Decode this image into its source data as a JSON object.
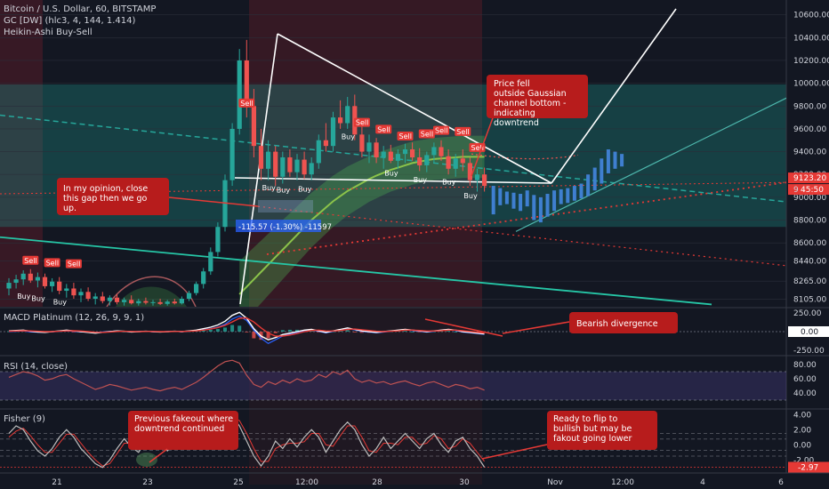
{
  "header": {
    "symbol_line": "Bitcoin / U.S. Dollar, 60, BITSTAMP",
    "indicator_1": "GC [DW] (hlc3, 4, 144, 1.414)",
    "indicator_2": "Heikin-Ashi Buy-Sell"
  },
  "price_axis": {
    "ticks": [
      "10600.00",
      "10400.00",
      "10200.00",
      "10000.00",
      "9800.00",
      "9600.00",
      "9400.00",
      "9200.00",
      "9000.00",
      "8800.00",
      "8600.00",
      "8440.00",
      "8265.00",
      "8105.00"
    ],
    "last_price_label": "9123.20",
    "countdown_label": "45:50",
    "gap_label": "9"
  },
  "macd_panel": {
    "title": "MACD Platinum (12, 26, 9, 9, 1)",
    "ticks": [
      "250.00",
      "0.00",
      "-250.00"
    ],
    "value_label": "0.00"
  },
  "rsi_panel": {
    "title": "RSI (14, close)",
    "ticks": [
      "80.00",
      "60.00",
      "40.00"
    ]
  },
  "fisher_panel": {
    "title": "Fisher (9)",
    "ticks": [
      "4.00",
      "2.00",
      "0.00",
      "-2.00"
    ],
    "value_label": "-2.97"
  },
  "time_axis": {
    "ticks": [
      "21",
      "23",
      "25",
      "12:00",
      "28",
      "30",
      "Nov",
      "12:00",
      "4",
      "6"
    ]
  },
  "measure_label": "-115.57 (-1.30%) -11597",
  "annotations": {
    "gaussian": "Price fell outside Gaussian channel bottom - indicating downtrend",
    "gap": "In my opinion, close this gap then we go up.",
    "bearish": "Bearish divergence",
    "fakeout": "Previous fakeout where downtrend continued",
    "flip": "Ready to flip to bullish but may be fakout going lower"
  },
  "signals": {
    "buy": "Buy",
    "sell": "Sell"
  },
  "colors": {
    "background": "#131722",
    "up": "#26a69a",
    "down": "#ef5350",
    "forecast": "#3f7fd0",
    "annotation_bg": "#b71c1c",
    "rsi": "#c05252",
    "macd_zero_line": "#787b86"
  },
  "chart_data": {
    "type": "candlestick",
    "title": "Bitcoin / U.S. Dollar, 60, BITSTAMP",
    "ylim": [
      8040,
      10730
    ],
    "y_ticks": [
      10600,
      10400,
      10200,
      10000,
      9800,
      9600,
      9400,
      9200,
      9000,
      8800,
      8600,
      8440,
      8265,
      8105
    ],
    "last_price": 9123.2,
    "x_tick_labels": [
      "21",
      "23",
      "25",
      "12:00",
      "28",
      "30",
      "Nov",
      "12:00",
      "4",
      "6"
    ],
    "candles": [
      {
        "o": 8200,
        "h": 8290,
        "l": 8140,
        "c": 8250
      },
      {
        "o": 8250,
        "h": 8320,
        "l": 8200,
        "c": 8280
      },
      {
        "o": 8280,
        "h": 8360,
        "l": 8230,
        "c": 8330
      },
      {
        "o": 8330,
        "h": 8370,
        "l": 8250,
        "c": 8270
      },
      {
        "o": 8270,
        "h": 8340,
        "l": 8210,
        "c": 8300
      },
      {
        "o": 8300,
        "h": 8330,
        "l": 8200,
        "c": 8220
      },
      {
        "o": 8220,
        "h": 8290,
        "l": 8170,
        "c": 8260
      },
      {
        "o": 8260,
        "h": 8300,
        "l": 8150,
        "c": 8180
      },
      {
        "o": 8180,
        "h": 8240,
        "l": 8120,
        "c": 8200
      },
      {
        "o": 8200,
        "h": 8250,
        "l": 8110,
        "c": 8140
      },
      {
        "o": 8140,
        "h": 8200,
        "l": 8080,
        "c": 8170
      },
      {
        "o": 8170,
        "h": 8210,
        "l": 8090,
        "c": 8110
      },
      {
        "o": 8110,
        "h": 8160,
        "l": 8060,
        "c": 8130
      },
      {
        "o": 8130,
        "h": 8170,
        "l": 8070,
        "c": 8090
      },
      {
        "o": 8090,
        "h": 8140,
        "l": 8050,
        "c": 8120
      },
      {
        "o": 8120,
        "h": 8150,
        "l": 8060,
        "c": 8080
      },
      {
        "o": 8080,
        "h": 8120,
        "l": 8050,
        "c": 8100
      },
      {
        "o": 8100,
        "h": 8140,
        "l": 8060,
        "c": 8070
      },
      {
        "o": 8070,
        "h": 8110,
        "l": 8050,
        "c": 8090
      },
      {
        "o": 8090,
        "h": 8120,
        "l": 8060,
        "c": 8075
      },
      {
        "o": 8075,
        "h": 8100,
        "l": 8050,
        "c": 8080
      },
      {
        "o": 8080,
        "h": 8110,
        "l": 8055,
        "c": 8065
      },
      {
        "o": 8065,
        "h": 8100,
        "l": 8050,
        "c": 8085
      },
      {
        "o": 8085,
        "h": 8110,
        "l": 8060,
        "c": 8070
      },
      {
        "o": 8070,
        "h": 8130,
        "l": 8060,
        "c": 8110
      },
      {
        "o": 8110,
        "h": 8180,
        "l": 8090,
        "c": 8160
      },
      {
        "o": 8160,
        "h": 8260,
        "l": 8140,
        "c": 8240
      },
      {
        "o": 8240,
        "h": 8380,
        "l": 8200,
        "c": 8350
      },
      {
        "o": 8350,
        "h": 8560,
        "l": 8320,
        "c": 8520
      },
      {
        "o": 8520,
        "h": 8780,
        "l": 8480,
        "c": 8740
      },
      {
        "o": 8740,
        "h": 9200,
        "l": 8700,
        "c": 9150
      },
      {
        "o": 9150,
        "h": 9650,
        "l": 9100,
        "c": 9600
      },
      {
        "o": 9600,
        "h": 10300,
        "l": 9550,
        "c": 10200
      },
      {
        "o": 10200,
        "h": 10380,
        "l": 9700,
        "c": 9800
      },
      {
        "o": 9800,
        "h": 9950,
        "l": 9350,
        "c": 9450
      },
      {
        "o": 9450,
        "h": 9600,
        "l": 9150,
        "c": 9250
      },
      {
        "o": 9250,
        "h": 9500,
        "l": 9150,
        "c": 9400
      },
      {
        "o": 9400,
        "h": 9450,
        "l": 9100,
        "c": 9180
      },
      {
        "o": 9180,
        "h": 9400,
        "l": 9120,
        "c": 9350
      },
      {
        "o": 9350,
        "h": 9420,
        "l": 9180,
        "c": 9220
      },
      {
        "o": 9220,
        "h": 9380,
        "l": 9150,
        "c": 9330
      },
      {
        "o": 9330,
        "h": 9400,
        "l": 9160,
        "c": 9200
      },
      {
        "o": 9200,
        "h": 9350,
        "l": 9150,
        "c": 9300
      },
      {
        "o": 9300,
        "h": 9550,
        "l": 9250,
        "c": 9500
      },
      {
        "o": 9500,
        "h": 9650,
        "l": 9400,
        "c": 9450
      },
      {
        "o": 9450,
        "h": 9750,
        "l": 9400,
        "c": 9700
      },
      {
        "o": 9700,
        "h": 9850,
        "l": 9600,
        "c": 9650
      },
      {
        "o": 9650,
        "h": 9880,
        "l": 9600,
        "c": 9800
      },
      {
        "o": 9800,
        "h": 9900,
        "l": 9500,
        "c": 9550
      },
      {
        "o": 9550,
        "h": 9650,
        "l": 9350,
        "c": 9400
      },
      {
        "o": 9400,
        "h": 9550,
        "l": 9300,
        "c": 9480
      },
      {
        "o": 9480,
        "h": 9520,
        "l": 9300,
        "c": 9350
      },
      {
        "o": 9350,
        "h": 9450,
        "l": 9250,
        "c": 9400
      },
      {
        "o": 9400,
        "h": 9460,
        "l": 9300,
        "c": 9320
      },
      {
        "o": 9320,
        "h": 9420,
        "l": 9250,
        "c": 9380
      },
      {
        "o": 9380,
        "h": 9470,
        "l": 9300,
        "c": 9420
      },
      {
        "o": 9420,
        "h": 9480,
        "l": 9320,
        "c": 9350
      },
      {
        "o": 9350,
        "h": 9430,
        "l": 9230,
        "c": 9280
      },
      {
        "o": 9280,
        "h": 9400,
        "l": 9220,
        "c": 9370
      },
      {
        "o": 9370,
        "h": 9480,
        "l": 9300,
        "c": 9440
      },
      {
        "o": 9440,
        "h": 9500,
        "l": 9320,
        "c": 9360
      },
      {
        "o": 9360,
        "h": 9420,
        "l": 9200,
        "c": 9250
      },
      {
        "o": 9250,
        "h": 9380,
        "l": 9180,
        "c": 9340
      },
      {
        "o": 9340,
        "h": 9420,
        "l": 9230,
        "c": 9300
      },
      {
        "o": 9300,
        "h": 9350,
        "l": 9100,
        "c": 9150
      },
      {
        "o": 9150,
        "h": 9250,
        "l": 9050,
        "c": 9200
      },
      {
        "o": 9200,
        "h": 9260,
        "l": 9050,
        "c": 9100
      }
    ],
    "forecast_bars": [
      {
        "h": 9100,
        "l": 8850
      },
      {
        "h": 9080,
        "l": 8930
      },
      {
        "h": 9050,
        "l": 8940
      },
      {
        "h": 9040,
        "l": 8900
      },
      {
        "h": 9030,
        "l": 8880
      },
      {
        "h": 9060,
        "l": 8920
      },
      {
        "h": 9020,
        "l": 8800
      },
      {
        "h": 9000,
        "l": 8780
      },
      {
        "h": 9030,
        "l": 8830
      },
      {
        "h": 9060,
        "l": 8880
      },
      {
        "h": 9070,
        "l": 8940
      },
      {
        "h": 9080,
        "l": 8950
      },
      {
        "h": 9100,
        "l": 8970
      },
      {
        "h": 9120,
        "l": 8990
      },
      {
        "h": 9200,
        "l": 9010
      },
      {
        "h": 9260,
        "l": 9060
      },
      {
        "h": 9340,
        "l": 9120
      },
      {
        "h": 9420,
        "l": 9210
      },
      {
        "h": 9400,
        "l": 9250
      },
      {
        "h": 9380,
        "l": 9270
      }
    ],
    "buy_signals": [
      {
        "i": 2,
        "p": 8220
      },
      {
        "i": 4,
        "p": 8200
      },
      {
        "i": 7,
        "p": 8170
      },
      {
        "i": 36,
        "p": 9170
      },
      {
        "i": 38,
        "p": 9150
      },
      {
        "i": 41,
        "p": 9160
      },
      {
        "i": 47,
        "p": 9620
      },
      {
        "i": 53,
        "p": 9300
      },
      {
        "i": 57,
        "p": 9240
      },
      {
        "i": 61,
        "p": 9220
      },
      {
        "i": 64,
        "p": 9100
      }
    ],
    "sell_signals": [
      {
        "i": 3,
        "p": 8330
      },
      {
        "i": 6,
        "p": 8310
      },
      {
        "i": 9,
        "p": 8300
      },
      {
        "i": 33,
        "p": 9710
      },
      {
        "i": 49,
        "p": 9540
      },
      {
        "i": 52,
        "p": 9480
      },
      {
        "i": 55,
        "p": 9420
      },
      {
        "i": 58,
        "p": 9440
      },
      {
        "i": 60,
        "p": 9470
      },
      {
        "i": 63,
        "p": 9460
      },
      {
        "i": 65,
        "p": 9320
      }
    ],
    "gaussian_band": {
      "upper": [
        null,
        null,
        null,
        null,
        null,
        null,
        null,
        null,
        null,
        null,
        null,
        null,
        null,
        null,
        null,
        null,
        null,
        null,
        null,
        null,
        null,
        null,
        null,
        null,
        null,
        null,
        null,
        null,
        null,
        null,
        null,
        null,
        8400,
        8460,
        8520,
        8580,
        8640,
        8700,
        8760,
        8820,
        8880,
        8940,
        9000,
        9050,
        9100,
        9150,
        9190,
        9230,
        9260,
        9290,
        9320,
        9350,
        9370,
        9390,
        9410,
        9430,
        9450,
        9460,
        9470,
        9480,
        9485,
        9490,
        9495,
        9500,
        9500,
        9500,
        9500
      ],
      "lower": [
        null,
        null,
        null,
        null,
        null,
        null,
        null,
        null,
        null,
        null,
        null,
        null,
        null,
        null,
        null,
        null,
        null,
        null,
        null,
        null,
        null,
        null,
        null,
        null,
        null,
        null,
        null,
        null,
        null,
        null,
        null,
        null,
        7900,
        7970,
        8040,
        8110,
        8180,
        8250,
        8320,
        8390,
        8460,
        8530,
        8600,
        8660,
        8720,
        8780,
        8830,
        8880,
        8920,
        8960,
        9000,
        9030,
        9060,
        9090,
        9110,
        9130,
        9150,
        9165,
        9180,
        9190,
        9195,
        9200,
        9205,
        9210,
        9210,
        9210,
        9210
      ]
    },
    "macd": {
      "ylim": [
        -300,
        300
      ],
      "macd": [
        10,
        15,
        20,
        5,
        -5,
        -10,
        0,
        10,
        20,
        10,
        0,
        -10,
        -20,
        -10,
        0,
        10,
        5,
        -5,
        0,
        5,
        0,
        -5,
        0,
        5,
        0,
        10,
        20,
        40,
        60,
        90,
        140,
        220,
        260,
        180,
        40,
        -60,
        -110,
        -80,
        -40,
        -20,
        0,
        20,
        30,
        10,
        -10,
        10,
        30,
        50,
        30,
        10,
        0,
        -10,
        0,
        10,
        20,
        30,
        20,
        10,
        0,
        10,
        20,
        30,
        20,
        0,
        -10,
        -20,
        -30
      ],
      "signal": [
        5,
        8,
        12,
        10,
        5,
        0,
        0,
        5,
        10,
        12,
        8,
        0,
        -8,
        -10,
        -5,
        2,
        5,
        2,
        0,
        2,
        2,
        0,
        0,
        2,
        2,
        5,
        10,
        20,
        35,
        55,
        85,
        130,
        180,
        185,
        130,
        50,
        -20,
        -60,
        -60,
        -45,
        -25,
        0,
        15,
        20,
        10,
        8,
        15,
        30,
        35,
        25,
        15,
        5,
        0,
        5,
        10,
        20,
        20,
        15,
        8,
        8,
        12,
        20,
        20,
        12,
        2,
        -8,
        -18
      ],
      "overlay": [
        0,
        4,
        8,
        -4,
        -8,
        -8,
        -4,
        4,
        8,
        4,
        -4,
        -8,
        -12,
        -4,
        4,
        8,
        2,
        -4,
        2,
        4,
        -2,
        -4,
        2,
        4,
        -2,
        6,
        12,
        24,
        40,
        60,
        100,
        170,
        210,
        150,
        20,
        -90,
        -160,
        -110,
        -60,
        -30,
        -10,
        10,
        20,
        4,
        -16,
        4,
        24,
        40,
        24,
        4,
        -6,
        -16,
        -6,
        4,
        14,
        24,
        14,
        4,
        -6,
        4,
        14,
        24,
        14,
        -6,
        -16,
        -26,
        -36
      ]
    },
    "rsi": {
      "ylim": [
        20,
        90
      ],
      "values": [
        62,
        66,
        70,
        68,
        64,
        58,
        60,
        64,
        66,
        60,
        55,
        50,
        45,
        48,
        52,
        50,
        47,
        44,
        46,
        48,
        45,
        43,
        46,
        48,
        45,
        50,
        55,
        62,
        70,
        78,
        84,
        86,
        82,
        65,
        52,
        48,
        56,
        52,
        58,
        54,
        60,
        56,
        58,
        66,
        62,
        70,
        66,
        72,
        60,
        55,
        58,
        54,
        56,
        52,
        55,
        57,
        53,
        50,
        54,
        56,
        52,
        48,
        52,
        50,
        46,
        48,
        44
      ]
    },
    "fisher": {
      "ylim": [
        -3.5,
        4.5
      ],
      "values": [
        1.5,
        2.5,
        2.0,
        0.5,
        -0.8,
        -1.5,
        -0.5,
        1.0,
        2.0,
        1.0,
        -0.5,
        -1.5,
        -2.5,
        -3.0,
        -2.0,
        -0.5,
        0.8,
        -0.3,
        -1.0,
        0.5,
        1.5,
        0.5,
        -0.8,
        0.5,
        1.2,
        2.0,
        2.8,
        3.2,
        3.0,
        2.0,
        3.5,
        3.8,
        2.5,
        0.5,
        -1.5,
        -2.8,
        -1.5,
        0.5,
        -0.5,
        0.8,
        -0.3,
        1.0,
        2.0,
        1.0,
        -1.0,
        0.5,
        2.0,
        3.0,
        2.0,
        0.0,
        -1.5,
        -0.5,
        1.0,
        -0.5,
        0.5,
        1.5,
        0.5,
        -0.5,
        0.8,
        1.5,
        0.0,
        -1.0,
        0.5,
        1.0,
        -0.5,
        -1.5,
        -2.97
      ],
      "signal": [
        1.0,
        1.8,
        2.2,
        1.2,
        0.0,
        -1.0,
        -1.0,
        0.2,
        1.4,
        1.4,
        0.2,
        -1.0,
        -2.0,
        -2.8,
        -2.5,
        -1.2,
        0.2,
        0.2,
        -0.6,
        -0.2,
        1.0,
        1.0,
        -0.2,
        -0.1,
        0.8,
        1.6,
        2.4,
        3.0,
        3.1,
        2.5,
        2.8,
        3.6,
        3.2,
        1.5,
        -0.5,
        -2.2,
        -2.2,
        -0.5,
        0.0,
        0.2,
        0.2,
        0.4,
        1.5,
        1.5,
        0.0,
        -0.2,
        1.2,
        2.5,
        2.5,
        1.0,
        -0.8,
        -1.0,
        0.2,
        0.2,
        0.0,
        1.0,
        1.0,
        0.0,
        0.2,
        1.2,
        0.8,
        -0.5,
        -0.2,
        0.8,
        0.2,
        -1.0,
        -2.2
      ]
    }
  }
}
